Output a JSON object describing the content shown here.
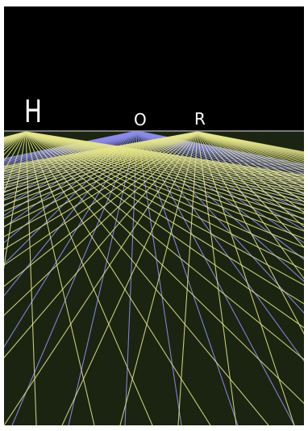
{
  "labels": {
    "left_vanishing_point": "H",
    "center_vanishing_point": "O",
    "right_vanishing_point": "R"
  },
  "colors": {
    "sky": "#000000",
    "ground": "#1a2410",
    "horizon": "#9a9a9a",
    "yellow_lines": "#e6e68a",
    "blue_lines": "#8c8cf0",
    "label_text": "#ffffff"
  }
}
